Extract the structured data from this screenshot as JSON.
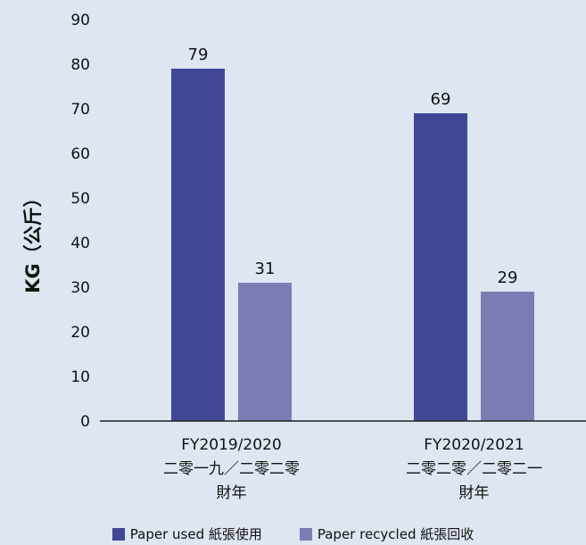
{
  "colors": {
    "used": "#3f4796",
    "recycled": "#7c7cb4"
  },
  "chart_data": {
    "type": "bar",
    "ylabel": "KG（公斤）",
    "ylim": [
      0,
      90
    ],
    "yticks": [
      0,
      10,
      20,
      30,
      40,
      50,
      60,
      70,
      80,
      90
    ],
    "categories": [
      {
        "lines": [
          "FY2019/2020",
          "二零一九／二零二零",
          "財年"
        ]
      },
      {
        "lines": [
          "FY2020/2021",
          "二零二零／二零二一",
          "財年"
        ]
      }
    ],
    "series": [
      {
        "name": "Paper used 紙張使用",
        "values": [
          79,
          69
        ]
      },
      {
        "name": "Paper recycled 紙張回收",
        "values": [
          31,
          29
        ]
      }
    ],
    "grid": false,
    "legend": "bottom"
  }
}
